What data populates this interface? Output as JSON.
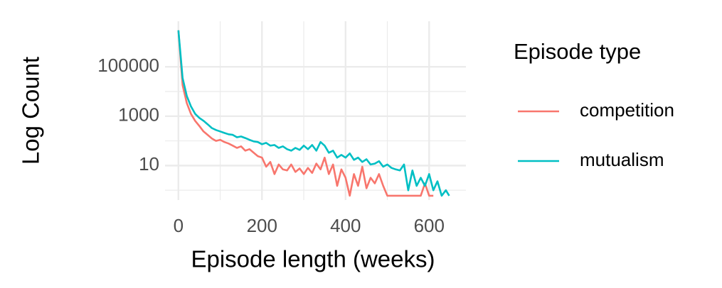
{
  "chart_data": {
    "type": "line",
    "x_label": "Episode length (weeks)",
    "y_label": "Log Count",
    "legend_title": "Episode type",
    "legend_position": "right",
    "log_y": true,
    "grid": true,
    "xlim": [
      -32,
      688
    ],
    "ylim": [
      0.4,
      7000000
    ],
    "xticks": [
      0,
      200,
      400,
      600
    ],
    "minor_xticks": [
      100,
      300,
      500
    ],
    "yticks": [
      10,
      1000,
      100000
    ],
    "minor_yticks": [
      1,
      100,
      10000
    ],
    "series": [
      {
        "name": "competition",
        "color": "#f8766d",
        "x": [
          0,
          10,
          20,
          30,
          40,
          50,
          60,
          70,
          80,
          90,
          100,
          110,
          120,
          130,
          140,
          150,
          160,
          170,
          180,
          190,
          200,
          210,
          220,
          230,
          240,
          250,
          260,
          270,
          280,
          290,
          300,
          310,
          320,
          330,
          340,
          350,
          360,
          370,
          380,
          390,
          400,
          410,
          420,
          430,
          440,
          450,
          460,
          470,
          480,
          490,
          500,
          510,
          520,
          530,
          540,
          550,
          560,
          570,
          580,
          590,
          600,
          610
        ],
        "values": [
          3000000,
          18000,
          3400,
          1250,
          650,
          400,
          240,
          175,
          125,
          100,
          110,
          90,
          78,
          64,
          52,
          60,
          40,
          46,
          33,
          24,
          21,
          9,
          14,
          4.5,
          11,
          7,
          6.3,
          11,
          5.5,
          7.6,
          4.5,
          8,
          5,
          12,
          7,
          21,
          4.5,
          11,
          1.5,
          7,
          3.2,
          0.6,
          4.5,
          1.5,
          9,
          1.2,
          3.2,
          1.9,
          4.5,
          1.5,
          0.6,
          0.6,
          0.6,
          0.6,
          0.6,
          0.6,
          0.6,
          0.6,
          0.6,
          1.9,
          0.6,
          0.6
        ]
      },
      {
        "name": "mutualism",
        "color": "#00bfc4",
        "x": [
          0,
          10,
          20,
          30,
          40,
          50,
          60,
          70,
          80,
          90,
          100,
          110,
          120,
          130,
          140,
          150,
          160,
          170,
          180,
          190,
          200,
          210,
          220,
          230,
          240,
          250,
          260,
          270,
          280,
          290,
          300,
          310,
          320,
          330,
          340,
          350,
          360,
          370,
          380,
          390,
          400,
          410,
          420,
          430,
          440,
          450,
          460,
          470,
          480,
          490,
          500,
          510,
          520,
          530,
          540,
          550,
          560,
          570,
          580,
          590,
          600,
          610,
          620,
          630,
          640,
          648
        ],
        "values": [
          3000000,
          35000,
          6600,
          2500,
          1250,
          850,
          650,
          470,
          330,
          275,
          240,
          210,
          185,
          175,
          140,
          150,
          130,
          110,
          95,
          90,
          73,
          83,
          64,
          68,
          52,
          60,
          46,
          40,
          52,
          43,
          64,
          46,
          68,
          40,
          90,
          64,
          33,
          40,
          21,
          27,
          21,
          31,
          17,
          21,
          14,
          18,
          11,
          12,
          15,
          9,
          11,
          8,
          7,
          6.3,
          11,
          1,
          6.3,
          1.5,
          3.2,
          1.5,
          4.5,
          1,
          2.3,
          0.6,
          1,
          0.6
        ]
      }
    ]
  }
}
